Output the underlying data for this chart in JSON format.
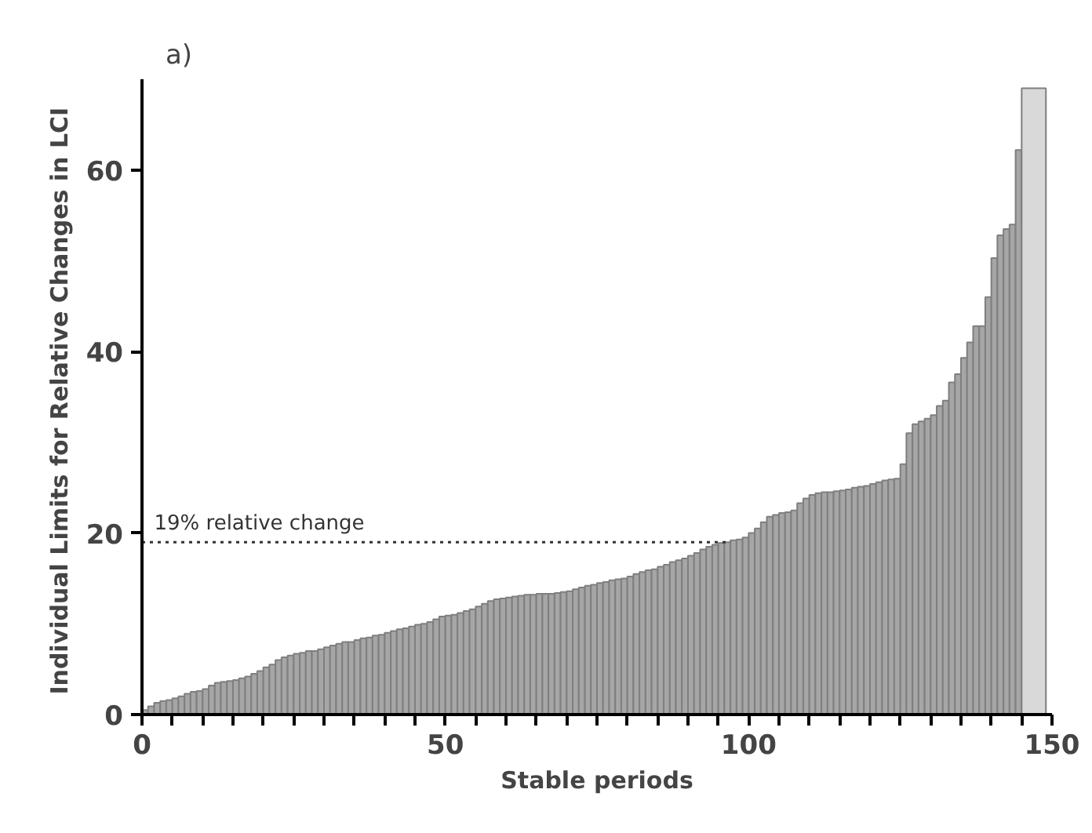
{
  "chart_data": {
    "type": "bar",
    "title": "a)",
    "xlabel": "Stable periods",
    "ylabel": "Individual Limits for Relative Changes in  LCI",
    "x": [
      0.5,
      1.5,
      2.5,
      3.5,
      4.5,
      5.5,
      6.5,
      7.5,
      8.5,
      9.5,
      10.5,
      11.5,
      12.5,
      13.5,
      14.5,
      15.5,
      16.5,
      17.5,
      18.5,
      19.5,
      20.5,
      21.5,
      22.5,
      23.5,
      24.5,
      25.5,
      26.5,
      27.5,
      28.5,
      29.5,
      30.5,
      31.5,
      32.5,
      33.5,
      34.5,
      35.5,
      36.5,
      37.5,
      38.5,
      39.5,
      40.5,
      41.5,
      42.5,
      43.5,
      44.5,
      45.5,
      46.5,
      47.5,
      48.5,
      49.5,
      50.5,
      51.5,
      52.5,
      53.5,
      54.5,
      55.5,
      56.5,
      57.5,
      58.5,
      59.5,
      60.5,
      61.5,
      62.5,
      63.5,
      64.5,
      65.5,
      66.5,
      67.5,
      68.5,
      69.5,
      70.5,
      71.5,
      72.5,
      73.5,
      74.5,
      75.5,
      76.5,
      77.5,
      78.5,
      79.5,
      80.5,
      81.5,
      82.5,
      83.5,
      84.5,
      85.5,
      86.5,
      87.5,
      88.5,
      89.5,
      90.5,
      91.5,
      92.5,
      93.5,
      94.5,
      95.5,
      96.5,
      97.5,
      98.5,
      99.5,
      100.5,
      101.5,
      102.5,
      103.5,
      104.5,
      105.5,
      106.5,
      107.5,
      108.5,
      109.5,
      110.5,
      111.5,
      112.5,
      113.5,
      114.5,
      115.5,
      116.5,
      117.5,
      118.5,
      119.5,
      120.5,
      121.5,
      122.5,
      123.5,
      124.5,
      125.5,
      126.5,
      127.5,
      128.5,
      129.5,
      130.5,
      131.5,
      132.5,
      133.5,
      134.5,
      135.5,
      136.5,
      137.5,
      138.5,
      139.5,
      140.5,
      141.5,
      142.5,
      143.5,
      144.5,
      147
    ],
    "values": [
      0.5,
      0.9,
      1.3,
      1.5,
      1.6,
      1.8,
      2.0,
      2.3,
      2.5,
      2.6,
      2.8,
      3.2,
      3.5,
      3.6,
      3.7,
      3.8,
      4.0,
      4.2,
      4.5,
      4.8,
      5.2,
      5.5,
      6.0,
      6.3,
      6.5,
      6.7,
      6.8,
      7.0,
      7.0,
      7.2,
      7.4,
      7.6,
      7.8,
      8.0,
      8.0,
      8.2,
      8.4,
      8.5,
      8.7,
      8.8,
      9.0,
      9.2,
      9.4,
      9.5,
      9.7,
      9.9,
      10.0,
      10.2,
      10.5,
      10.8,
      10.9,
      11.0,
      11.2,
      11.4,
      11.6,
      11.9,
      12.2,
      12.5,
      12.7,
      12.8,
      12.9,
      13.0,
      13.1,
      13.2,
      13.2,
      13.3,
      13.3,
      13.3,
      13.4,
      13.5,
      13.6,
      13.8,
      14.0,
      14.2,
      14.3,
      14.5,
      14.6,
      14.8,
      14.9,
      15.0,
      15.2,
      15.5,
      15.7,
      15.9,
      16.0,
      16.3,
      16.5,
      16.8,
      17.0,
      17.2,
      17.5,
      17.8,
      18.2,
      18.5,
      18.7,
      18.9,
      19.0,
      19.2,
      19.3,
      19.5,
      20.0,
      20.5,
      21.2,
      21.8,
      22.0,
      22.2,
      22.3,
      22.5,
      23.3,
      23.8,
      24.2,
      24.4,
      24.5,
      24.5,
      24.6,
      24.7,
      24.8,
      25.0,
      25.1,
      25.2,
      25.4,
      25.6,
      25.8,
      25.9,
      26.0,
      27.6,
      31.0,
      32.0,
      32.3,
      32.6,
      33.0,
      34.0,
      34.6,
      36.6,
      37.5,
      39.3,
      41.0,
      42.8,
      42.8,
      46.0,
      50.3,
      52.8,
      53.5,
      54.0,
      62.2,
      69
    ],
    "colors": [
      "#a6a6a6",
      "#a6a6a6",
      "#a6a6a6",
      "#a6a6a6",
      "#a6a6a6",
      "#a6a6a6",
      "#a6a6a6",
      "#a6a6a6",
      "#a6a6a6",
      "#a6a6a6",
      "#a6a6a6",
      "#a6a6a6",
      "#a6a6a6",
      "#a6a6a6",
      "#a6a6a6",
      "#a6a6a6",
      "#a6a6a6",
      "#a6a6a6",
      "#a6a6a6",
      "#a6a6a6",
      "#a6a6a6",
      "#a6a6a6",
      "#a6a6a6",
      "#a6a6a6",
      "#a6a6a6",
      "#a6a6a6",
      "#a6a6a6",
      "#a6a6a6",
      "#a6a6a6",
      "#a6a6a6",
      "#a6a6a6",
      "#a6a6a6",
      "#a6a6a6",
      "#a6a6a6",
      "#a6a6a6",
      "#a6a6a6",
      "#a6a6a6",
      "#a6a6a6",
      "#a6a6a6",
      "#a6a6a6",
      "#a6a6a6",
      "#a6a6a6",
      "#a6a6a6",
      "#a6a6a6",
      "#a6a6a6",
      "#a6a6a6",
      "#a6a6a6",
      "#a6a6a6",
      "#a6a6a6",
      "#a6a6a6",
      "#a6a6a6",
      "#a6a6a6",
      "#a6a6a6",
      "#a6a6a6",
      "#a6a6a6",
      "#a6a6a6",
      "#a6a6a6",
      "#a6a6a6",
      "#a6a6a6",
      "#a6a6a6",
      "#a6a6a6",
      "#a6a6a6",
      "#a6a6a6",
      "#a6a6a6",
      "#a6a6a6",
      "#a6a6a6",
      "#a6a6a6",
      "#a6a6a6",
      "#a6a6a6",
      "#a6a6a6",
      "#a6a6a6",
      "#a6a6a6",
      "#a6a6a6",
      "#a6a6a6",
      "#a6a6a6",
      "#a6a6a6",
      "#a6a6a6",
      "#a6a6a6",
      "#a6a6a6",
      "#a6a6a6",
      "#a6a6a6",
      "#a6a6a6",
      "#a6a6a6",
      "#a6a6a6",
      "#a6a6a6",
      "#a6a6a6",
      "#a6a6a6",
      "#a6a6a6",
      "#a6a6a6",
      "#a6a6a6",
      "#a6a6a6",
      "#a6a6a6",
      "#a6a6a6",
      "#a6a6a6",
      "#a6a6a6",
      "#a6a6a6",
      "#a6a6a6",
      "#a6a6a6",
      "#a6a6a6",
      "#a6a6a6",
      "#a6a6a6",
      "#a6a6a6",
      "#a6a6a6",
      "#a6a6a6",
      "#a6a6a6",
      "#a6a6a6",
      "#a6a6a6",
      "#a6a6a6",
      "#a6a6a6",
      "#a6a6a6",
      "#a6a6a6",
      "#a6a6a6",
      "#a6a6a6",
      "#a6a6a6",
      "#a6a6a6",
      "#a6a6a6",
      "#a6a6a6",
      "#a6a6a6",
      "#a6a6a6",
      "#a6a6a6",
      "#a6a6a6",
      "#a6a6a6",
      "#a6a6a6",
      "#a6a6a6",
      "#a6a6a6",
      "#a6a6a6",
      "#a6a6a6",
      "#a6a6a6",
      "#a6a6a6",
      "#a6a6a6",
      "#a6a6a6",
      "#a6a6a6",
      "#a6a6a6",
      "#a6a6a6",
      "#a6a6a6",
      "#a6a6a6",
      "#a6a6a6",
      "#a6a6a6",
      "#a6a6a6",
      "#a6a6a6",
      "#a6a6a6",
      "#a6a6a6",
      "#a6a6a6",
      "#a6a6a6",
      "#a6a6a6",
      "#d9d9d9"
    ],
    "xlim": [
      0,
      150
    ],
    "ylim": [
      0,
      70
    ],
    "xticks": [
      0,
      {
        "value": 5,
        "label": null
      },
      {
        "value": 10,
        "label": null
      },
      {
        "value": 15,
        "label": null
      },
      {
        "value": 20,
        "label": null
      },
      {
        "value": 25,
        "label": null
      },
      {
        "value": 30,
        "label": null
      },
      {
        "value": 35,
        "label": null
      },
      {
        "value": 40,
        "label": null
      },
      {
        "value": 45,
        "label": null
      },
      50,
      {
        "value": 55,
        "label": null
      },
      {
        "value": 60,
        "label": null
      },
      {
        "value": 65,
        "label": null
      },
      {
        "value": 70,
        "label": null
      },
      {
        "value": 75,
        "label": null
      },
      {
        "value": 80,
        "label": null
      },
      {
        "value": 85,
        "label": null
      },
      {
        "value": 90,
        "label": null
      },
      {
        "value": 95,
        "label": null
      },
      100,
      {
        "value": 105,
        "label": null
      },
      {
        "value": 110,
        "label": null
      },
      {
        "value": 115,
        "label": null
      },
      {
        "value": 120,
        "label": null
      },
      {
        "value": 125,
        "label": null
      },
      {
        "value": 130,
        "label": null
      },
      {
        "value": 135,
        "label": null
      },
      {
        "value": 140,
        "label": null
      },
      {
        "value": 145,
        "label": null
      },
      150
    ],
    "yticks": [
      0,
      20,
      40,
      60
    ],
    "ref_lines": [
      {
        "axis": "y",
        "value": 19,
        "label": "19% relative change",
        "color": "#333333",
        "line_style": "dotted"
      }
    ],
    "grid": false
  }
}
